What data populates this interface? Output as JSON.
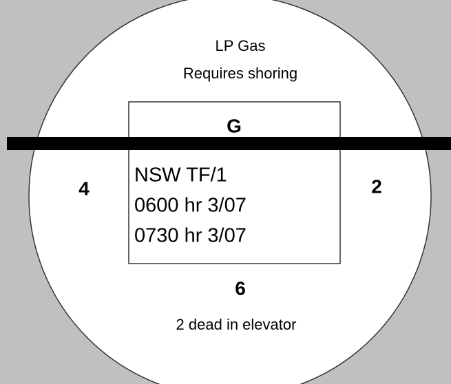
{
  "top_text": [
    "LP Gas",
    "Requires shoring"
  ],
  "box": {
    "top": "G",
    "lines": [
      "NSW TF/1",
      "0600 hr 3/07",
      "0730 hr 3/07"
    ]
  },
  "left": "4",
  "right": "2",
  "bottom": "6",
  "bottom_text": "2 dead in elevator"
}
